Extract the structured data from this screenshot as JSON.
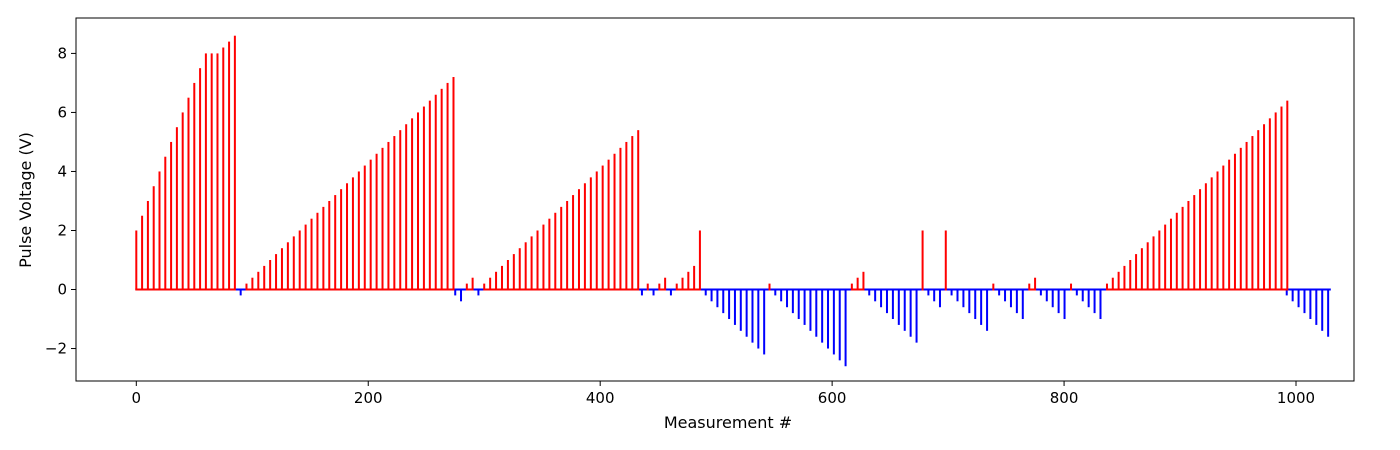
{
  "chart_data": {
    "type": "bar",
    "title": "",
    "xlabel": "Measurement #",
    "ylabel": "Pulse Voltage (V)",
    "xlim": [
      -52,
      1050
    ],
    "ylim": [
      -3.1,
      9.2
    ],
    "xticks": [
      0,
      200,
      400,
      600,
      800,
      1000
    ],
    "yticks": [
      -2,
      0,
      2,
      4,
      6,
      8
    ],
    "grid": false,
    "legend": "none",
    "colors": {
      "positive": "#ff0000",
      "negative": "#0000ff",
      "axes": "#000000"
    },
    "segments": [
      {
        "x0": 0,
        "dx": 5,
        "values": [
          2.0,
          2.5,
          3.0,
          3.5,
          4.0,
          4.5,
          5.0,
          5.5,
          6.0,
          6.5,
          7.0,
          7.5,
          8.0,
          8.0,
          8.0,
          8.2,
          8.4,
          8.6
        ]
      },
      {
        "x0": 90,
        "dx": 5,
        "values": [
          -0.2
        ]
      },
      {
        "x0": 95,
        "dx": 5.1,
        "values": [
          0.2,
          0.4,
          0.6,
          0.8,
          1.0,
          1.2,
          1.4,
          1.6,
          1.8,
          2.0,
          2.2,
          2.4,
          2.6,
          2.8,
          3.0,
          3.2,
          3.4,
          3.6,
          3.8,
          4.0,
          4.2,
          4.4,
          4.6,
          4.8,
          5.0,
          5.2,
          5.4,
          5.6,
          5.8,
          6.0,
          6.2,
          6.4,
          6.6,
          6.8,
          7.0,
          7.2
        ]
      },
      {
        "x0": 275,
        "dx": 5,
        "values": [
          -0.2,
          -0.4
        ]
      },
      {
        "x0": 285,
        "dx": 5,
        "values": [
          0.2,
          0.4
        ]
      },
      {
        "x0": 295,
        "dx": 5,
        "values": [
          -0.2
        ]
      },
      {
        "x0": 300,
        "dx": 5.107,
        "values": [
          0.2,
          0.4,
          0.6,
          0.8,
          1.0,
          1.2,
          1.4,
          1.6,
          1.8,
          2.0,
          2.2,
          2.4,
          2.6,
          2.8,
          3.0,
          3.2,
          3.4,
          3.6,
          3.8,
          4.0,
          4.2,
          4.4,
          4.6,
          4.8,
          5.0,
          5.2,
          5.4
        ]
      },
      {
        "x0": 436,
        "dx": 5,
        "values": [
          -0.2
        ]
      },
      {
        "x0": 441,
        "dx": 5,
        "values": [
          0.2
        ]
      },
      {
        "x0": 446,
        "dx": 5,
        "values": [
          -0.2
        ]
      },
      {
        "x0": 451,
        "dx": 5,
        "values": [
          0.2,
          0.4
        ]
      },
      {
        "x0": 461,
        "dx": 5,
        "values": [
          -0.2
        ]
      },
      {
        "x0": 466,
        "dx": 5,
        "values": [
          0.2,
          0.4,
          0.6,
          0.8,
          2.0
        ]
      },
      {
        "x0": 491,
        "dx": 5.04,
        "values": [
          -0.2,
          -0.4,
          -0.6,
          -0.8,
          -1.0,
          -1.2,
          -1.4,
          -1.6,
          -1.8,
          -2.0,
          -2.2
        ]
      },
      {
        "x0": 546,
        "dx": 5,
        "values": [
          0.2
        ]
      },
      {
        "x0": 551,
        "dx": 5.05,
        "values": [
          -0.2,
          -0.4,
          -0.6,
          -0.8,
          -1.0,
          -1.2,
          -1.4,
          -1.6,
          -1.8,
          -2.0,
          -2.2,
          -2.4,
          -2.6
        ]
      },
      {
        "x0": 617,
        "dx": 5,
        "values": [
          0.2,
          0.4,
          0.6
        ]
      },
      {
        "x0": 632,
        "dx": 5.1,
        "values": [
          -0.2,
          -0.4,
          -0.6,
          -0.8,
          -1.0,
          -1.2,
          -1.4,
          -1.6,
          -1.8
        ]
      },
      {
        "x0": 678,
        "dx": 5,
        "values": [
          2.0
        ]
      },
      {
        "x0": 683,
        "dx": 5,
        "values": [
          -0.2,
          -0.4,
          -0.6
        ]
      },
      {
        "x0": 698,
        "dx": 5,
        "values": [
          2.0
        ]
      },
      {
        "x0": 703,
        "dx": 5.1,
        "values": [
          -0.2,
          -0.4,
          -0.6,
          -0.8,
          -1.0,
          -1.2,
          -1.4
        ]
      },
      {
        "x0": 739,
        "dx": 5,
        "values": [
          0.2
        ]
      },
      {
        "x0": 744,
        "dx": 5.1,
        "values": [
          -0.2,
          -0.4,
          -0.6,
          -0.8,
          -1.0
        ]
      },
      {
        "x0": 770,
        "dx": 5,
        "values": [
          0.2,
          0.4
        ]
      },
      {
        "x0": 780,
        "dx": 5.1,
        "values": [
          -0.2,
          -0.4,
          -0.6,
          -0.8,
          -1.0
        ]
      },
      {
        "x0": 806,
        "dx": 5,
        "values": [
          0.2
        ]
      },
      {
        "x0": 811,
        "dx": 5.1,
        "values": [
          -0.2,
          -0.4,
          -0.6,
          -0.8,
          -1.0
        ]
      },
      {
        "x0": 837,
        "dx": 5.016,
        "values": [
          0.2,
          0.4,
          0.6,
          0.8,
          1.0,
          1.2,
          1.4,
          1.6,
          1.8,
          2.0,
          2.2,
          2.4,
          2.6,
          2.8,
          3.0,
          3.2,
          3.4,
          3.6,
          3.8,
          4.0,
          4.2,
          4.4,
          4.6,
          4.8,
          5.0,
          5.2,
          5.4,
          5.6,
          5.8,
          6.0,
          6.2,
          6.4
        ]
      },
      {
        "x0": 992,
        "dx": 5.1,
        "values": [
          -0.2,
          -0.4,
          -0.6,
          -0.8,
          -1.0,
          -1.2,
          -1.4,
          -1.6
        ]
      }
    ],
    "baseline_range": [
      0,
      1030
    ]
  }
}
